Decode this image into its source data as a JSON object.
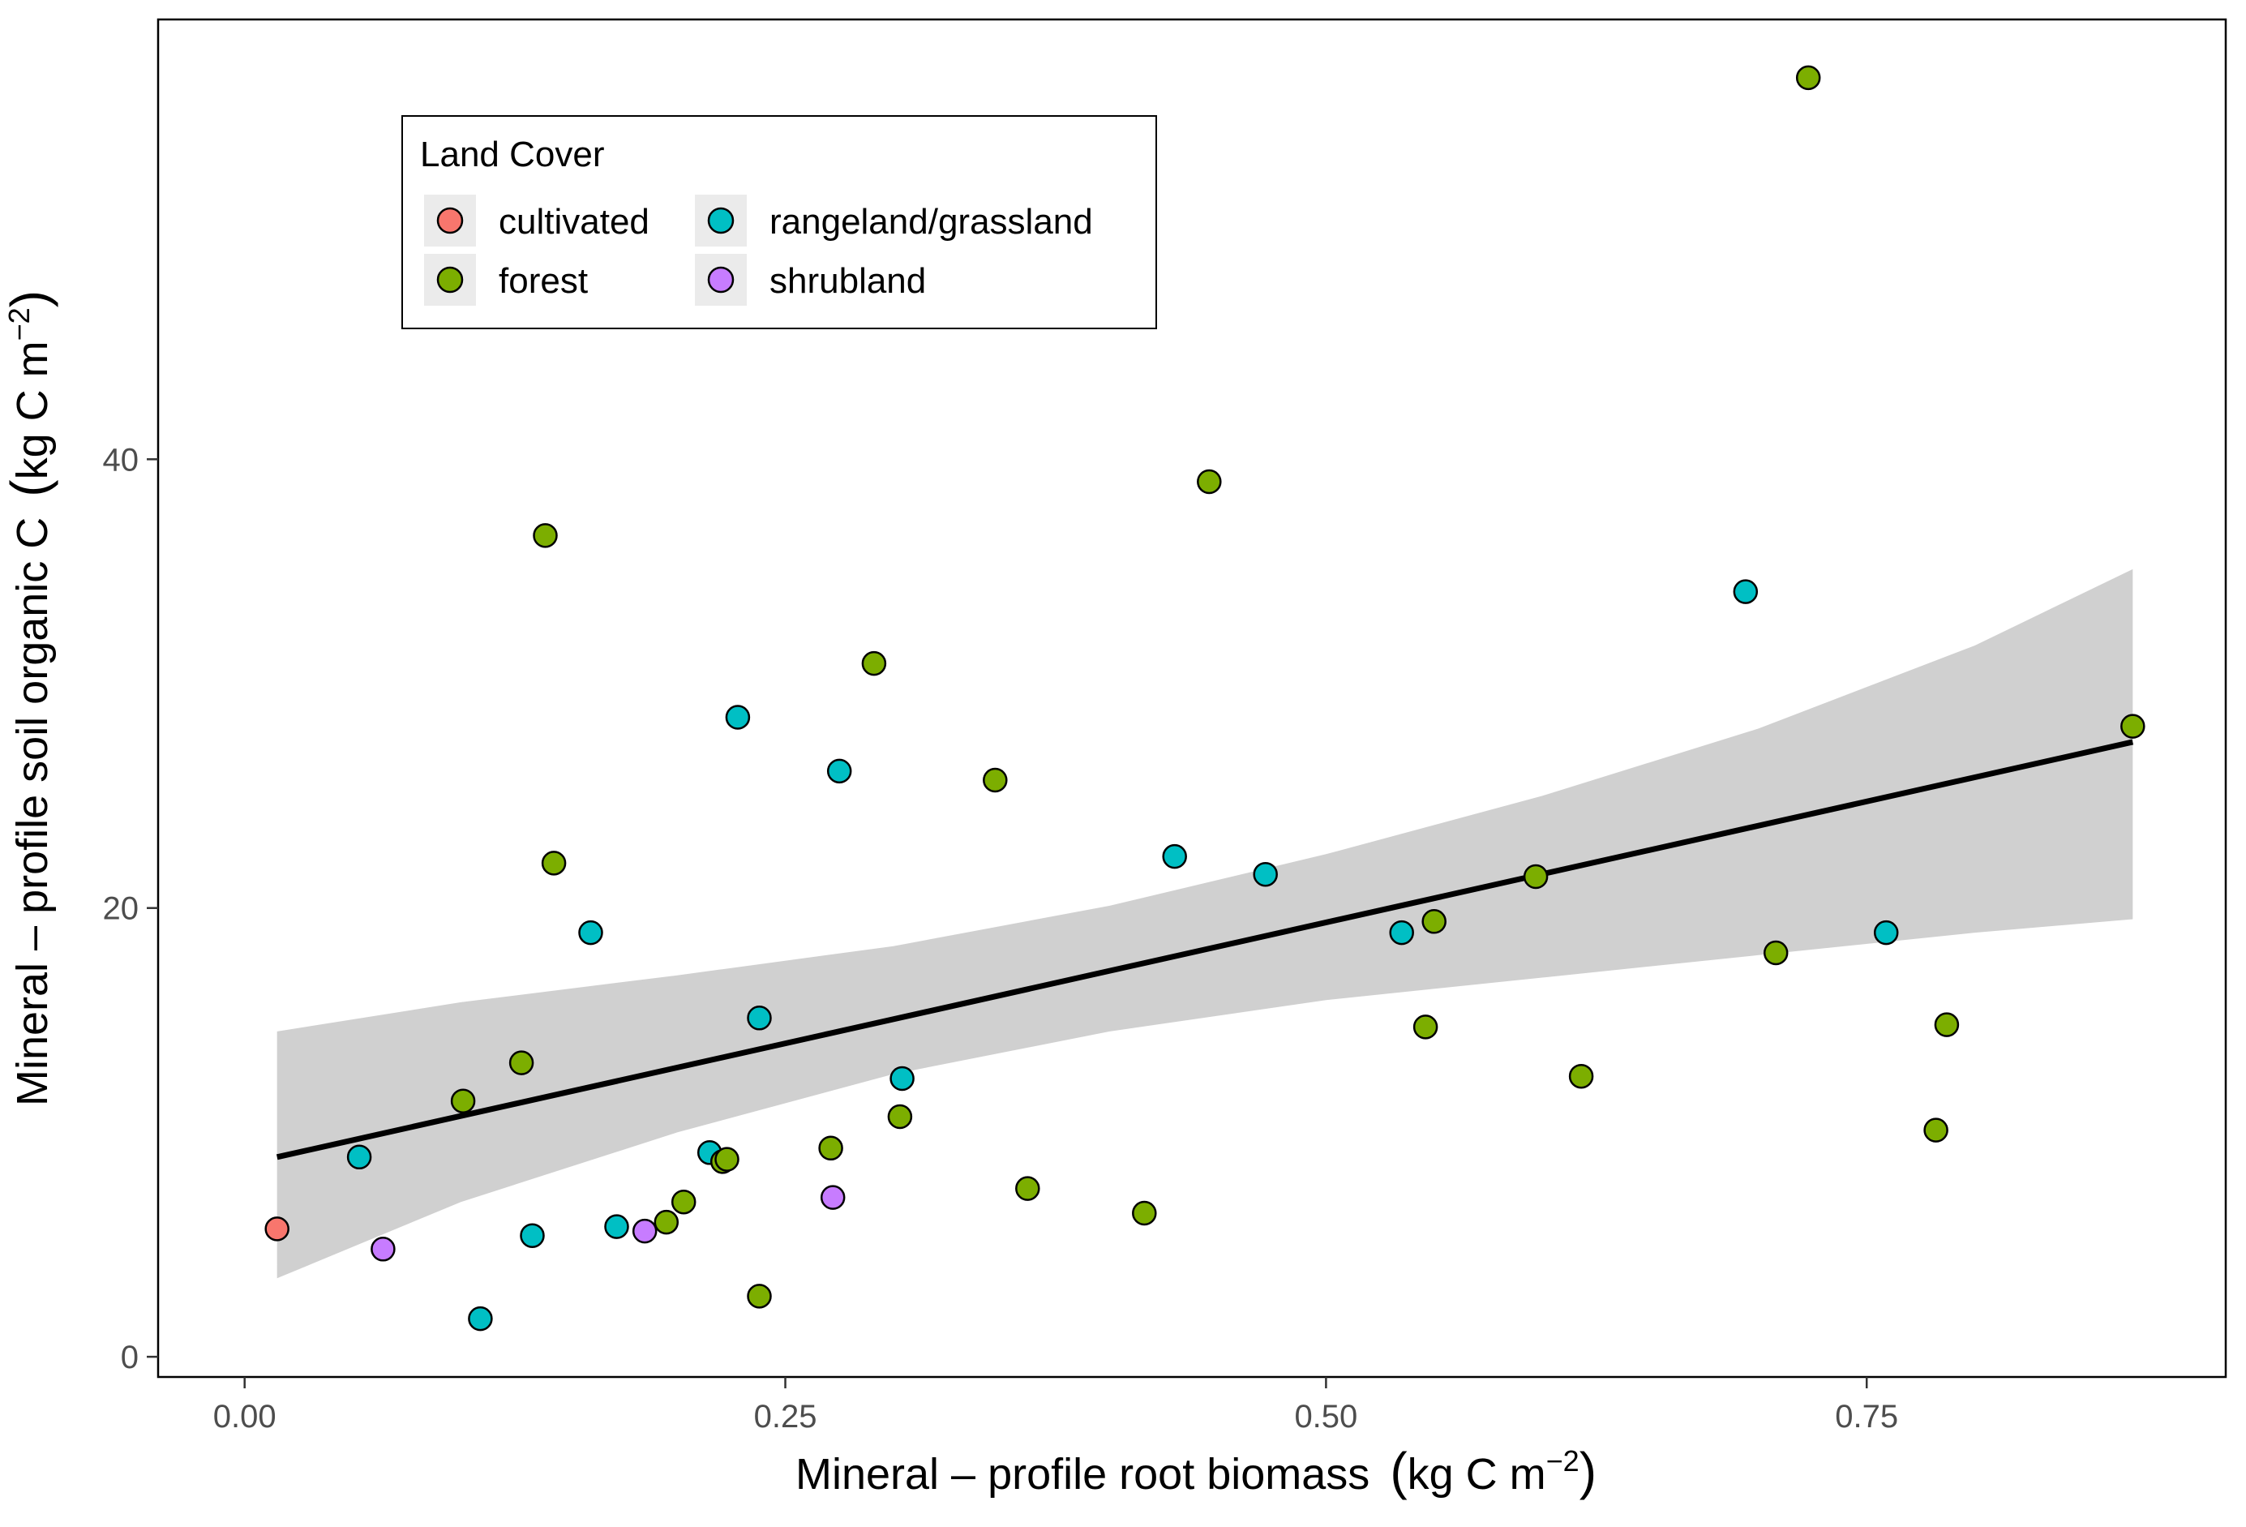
{
  "chart_data": {
    "type": "scatter",
    "x_axis": {
      "label_main": "Mineral – profile root biomass",
      "label_unit_prefix": "kg C m",
      "label_unit_exponent": "−2",
      "range": [
        -0.04,
        0.916
      ],
      "ticks": [
        0.0,
        0.25,
        0.5,
        0.75
      ],
      "tick_labels": [
        "0.00",
        "0.25",
        "0.50",
        "0.75"
      ]
    },
    "y_axis": {
      "label_main": "Mineral – profile soil organic C",
      "label_unit_prefix": "kg C m",
      "label_unit_exponent": "−2",
      "range": [
        -0.9,
        59.6
      ],
      "ticks": [
        0,
        20,
        40
      ],
      "tick_labels": [
        "0",
        "20",
        "40"
      ]
    },
    "grid": false,
    "legend": {
      "title": "Land Cover",
      "placement": "top-left",
      "entries": [
        {
          "key": "cultivated",
          "label": "cultivated",
          "color": "#F8766D"
        },
        {
          "key": "forest",
          "label": "forest",
          "color": "#7CAE00"
        },
        {
          "key": "rangeland",
          "label": "rangeland/grassland",
          "color": "#00BFC4"
        },
        {
          "key": "shrubland",
          "label": "shrubland",
          "color": "#C77CFF"
        }
      ]
    },
    "trend_line": {
      "x": [
        0.015,
        0.873
      ],
      "y": [
        8.9,
        27.4
      ],
      "color": "#000000"
    },
    "confidence_band": {
      "color": "#d0d0d0",
      "x": [
        0.015,
        0.1,
        0.2,
        0.3,
        0.4,
        0.5,
        0.6,
        0.7,
        0.8,
        0.873
      ],
      "upper": [
        14.5,
        15.8,
        17.0,
        18.3,
        20.1,
        22.4,
        25.0,
        28.0,
        31.7,
        35.1
      ],
      "lower": [
        3.5,
        6.9,
        10.0,
        12.6,
        14.5,
        15.9,
        16.9,
        17.9,
        18.9,
        19.5
      ]
    },
    "points": [
      {
        "x": 0.015,
        "y": 5.7,
        "group": "cultivated"
      },
      {
        "x": 0.053,
        "y": 8.9,
        "group": "rangeland"
      },
      {
        "x": 0.064,
        "y": 4.8,
        "group": "shrubland"
      },
      {
        "x": 0.101,
        "y": 11.4,
        "group": "forest"
      },
      {
        "x": 0.109,
        "y": 1.7,
        "group": "rangeland"
      },
      {
        "x": 0.128,
        "y": 13.1,
        "group": "forest"
      },
      {
        "x": 0.133,
        "y": 5.4,
        "group": "rangeland"
      },
      {
        "x": 0.139,
        "y": 36.6,
        "group": "forest"
      },
      {
        "x": 0.143,
        "y": 22.0,
        "group": "forest"
      },
      {
        "x": 0.16,
        "y": 18.9,
        "group": "rangeland"
      },
      {
        "x": 0.172,
        "y": 5.8,
        "group": "rangeland"
      },
      {
        "x": 0.185,
        "y": 5.6,
        "group": "shrubland"
      },
      {
        "x": 0.195,
        "y": 6.0,
        "group": "forest"
      },
      {
        "x": 0.203,
        "y": 6.9,
        "group": "forest"
      },
      {
        "x": 0.215,
        "y": 9.1,
        "group": "rangeland"
      },
      {
        "x": 0.221,
        "y": 8.7,
        "group": "forest"
      },
      {
        "x": 0.223,
        "y": 8.8,
        "group": "forest"
      },
      {
        "x": 0.228,
        "y": 28.5,
        "group": "rangeland"
      },
      {
        "x": 0.238,
        "y": 15.1,
        "group": "rangeland"
      },
      {
        "x": 0.238,
        "y": 2.7,
        "group": "forest"
      },
      {
        "x": 0.271,
        "y": 9.3,
        "group": "forest"
      },
      {
        "x": 0.272,
        "y": 7.1,
        "group": "shrubland"
      },
      {
        "x": 0.275,
        "y": 26.1,
        "group": "rangeland"
      },
      {
        "x": 0.291,
        "y": 30.9,
        "group": "forest"
      },
      {
        "x": 0.303,
        "y": 10.7,
        "group": "forest"
      },
      {
        "x": 0.304,
        "y": 12.4,
        "group": "rangeland"
      },
      {
        "x": 0.347,
        "y": 25.7,
        "group": "forest"
      },
      {
        "x": 0.362,
        "y": 7.5,
        "group": "forest"
      },
      {
        "x": 0.416,
        "y": 6.4,
        "group": "forest"
      },
      {
        "x": 0.43,
        "y": 22.3,
        "group": "rangeland"
      },
      {
        "x": 0.446,
        "y": 39.0,
        "group": "forest"
      },
      {
        "x": 0.472,
        "y": 21.5,
        "group": "rangeland"
      },
      {
        "x": 0.535,
        "y": 18.9,
        "group": "rangeland"
      },
      {
        "x": 0.546,
        "y": 14.7,
        "group": "forest"
      },
      {
        "x": 0.55,
        "y": 19.4,
        "group": "forest"
      },
      {
        "x": 0.597,
        "y": 21.4,
        "group": "forest"
      },
      {
        "x": 0.618,
        "y": 12.5,
        "group": "forest"
      },
      {
        "x": 0.694,
        "y": 34.1,
        "group": "rangeland"
      },
      {
        "x": 0.708,
        "y": 18.0,
        "group": "forest"
      },
      {
        "x": 0.723,
        "y": 57.0,
        "group": "forest"
      },
      {
        "x": 0.759,
        "y": 18.9,
        "group": "rangeland"
      },
      {
        "x": 0.782,
        "y": 10.1,
        "group": "forest"
      },
      {
        "x": 0.787,
        "y": 14.8,
        "group": "forest"
      },
      {
        "x": 0.873,
        "y": 28.1,
        "group": "forest"
      }
    ]
  }
}
